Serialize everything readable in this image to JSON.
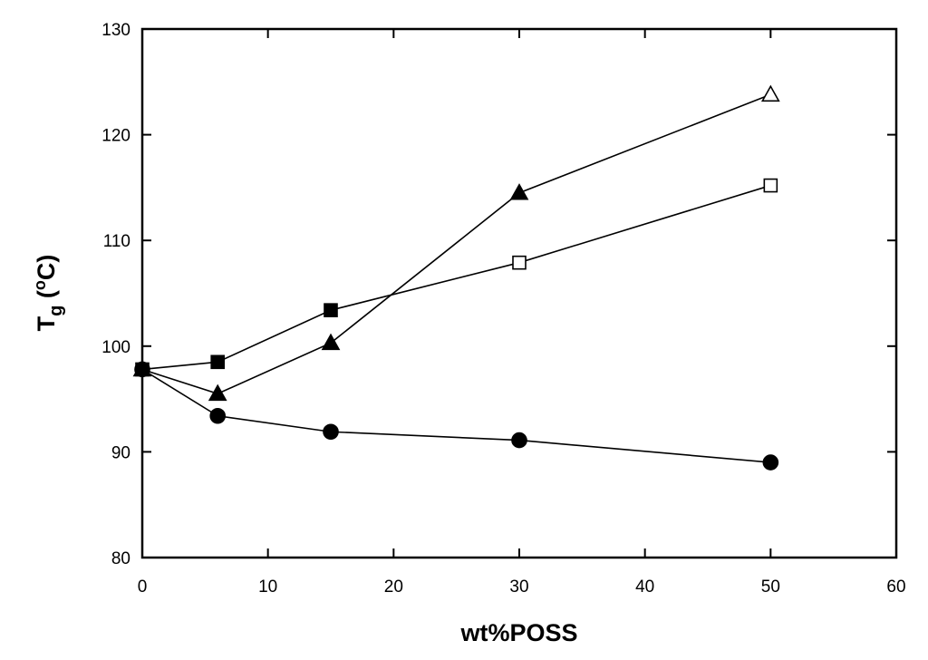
{
  "chart_data": {
    "type": "line",
    "title": "",
    "xlabel": "wt%POSS",
    "ylabel": {
      "base": "T",
      "sub": "g",
      "units_open": " (",
      "sup": "o",
      "units_close": "C)"
    },
    "xlim": [
      0,
      60
    ],
    "ylim": [
      80,
      130
    ],
    "xticks": [
      0,
      10,
      20,
      30,
      40,
      50,
      60
    ],
    "yticks": [
      80,
      90,
      100,
      110,
      120,
      130
    ],
    "grid": false,
    "legend": "none",
    "series": [
      {
        "name": "circle-series",
        "marker": "circle",
        "points": [
          {
            "x": 0,
            "y": 97.8,
            "filled": true
          },
          {
            "x": 6,
            "y": 93.4,
            "filled": true
          },
          {
            "x": 15,
            "y": 91.9,
            "filled": true
          },
          {
            "x": 30,
            "y": 91.1,
            "filled": true
          },
          {
            "x": 50,
            "y": 89.0,
            "filled": true
          }
        ]
      },
      {
        "name": "square-series",
        "marker": "square",
        "points": [
          {
            "x": 0,
            "y": 97.8,
            "filled": true
          },
          {
            "x": 6,
            "y": 98.5,
            "filled": true
          },
          {
            "x": 15,
            "y": 103.4,
            "filled": true
          },
          {
            "x": 30,
            "y": 107.9,
            "filled": false
          },
          {
            "x": 50,
            "y": 115.2,
            "filled": false
          }
        ]
      },
      {
        "name": "triangle-series",
        "marker": "triangle",
        "points": [
          {
            "x": 0,
            "y": 97.8,
            "filled": true
          },
          {
            "x": 6,
            "y": 95.5,
            "filled": true
          },
          {
            "x": 15,
            "y": 100.3,
            "filled": true
          },
          {
            "x": 30,
            "y": 114.5,
            "filled": true
          },
          {
            "x": 50,
            "y": 123.8,
            "filled": false
          }
        ]
      }
    ]
  }
}
